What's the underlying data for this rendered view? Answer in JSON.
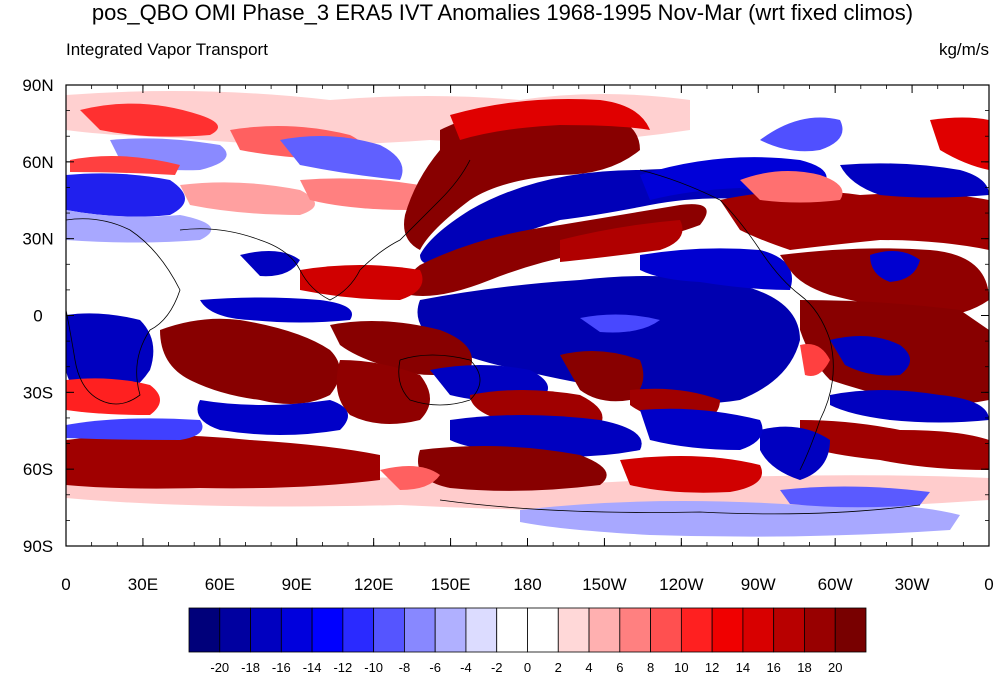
{
  "title": "pos_QBO OMI Phase_3 ERA5 IVT Anomalies 1968-1995 Nov-Mar (wrt fixed climos)",
  "left_subtitle": "Integrated Vapor Transport",
  "right_subtitle": "kg/m/s",
  "lat_labels": [
    "90N",
    "60N",
    "30N",
    "0",
    "30S",
    "60S",
    "90S"
  ],
  "lon_labels": [
    "0",
    "30E",
    "60E",
    "90E",
    "120E",
    "150E",
    "180",
    "150W",
    "120W",
    "90W",
    "60W",
    "30W",
    "0"
  ],
  "colorbar": {
    "labels": [
      "-20",
      "-18",
      "-16",
      "-14",
      "-12",
      "-10",
      "-8",
      "-6",
      "-4",
      "-2",
      "0",
      "2",
      "4",
      "6",
      "8",
      "10",
      "12",
      "14",
      "16",
      "18",
      "20"
    ],
    "colors": [
      "#00007a",
      "#0000a0",
      "#0000c0",
      "#0000dd",
      "#0000ff",
      "#2a2aff",
      "#5555ff",
      "#8888ff",
      "#b0b0ff",
      "#dcdcff",
      "#ffffff",
      "#ffffff",
      "#ffd8d8",
      "#ffb0b0",
      "#ff8080",
      "#ff5050",
      "#ff2020",
      "#f00000",
      "#d80000",
      "#b80000",
      "#980000",
      "#780000"
    ]
  }
}
